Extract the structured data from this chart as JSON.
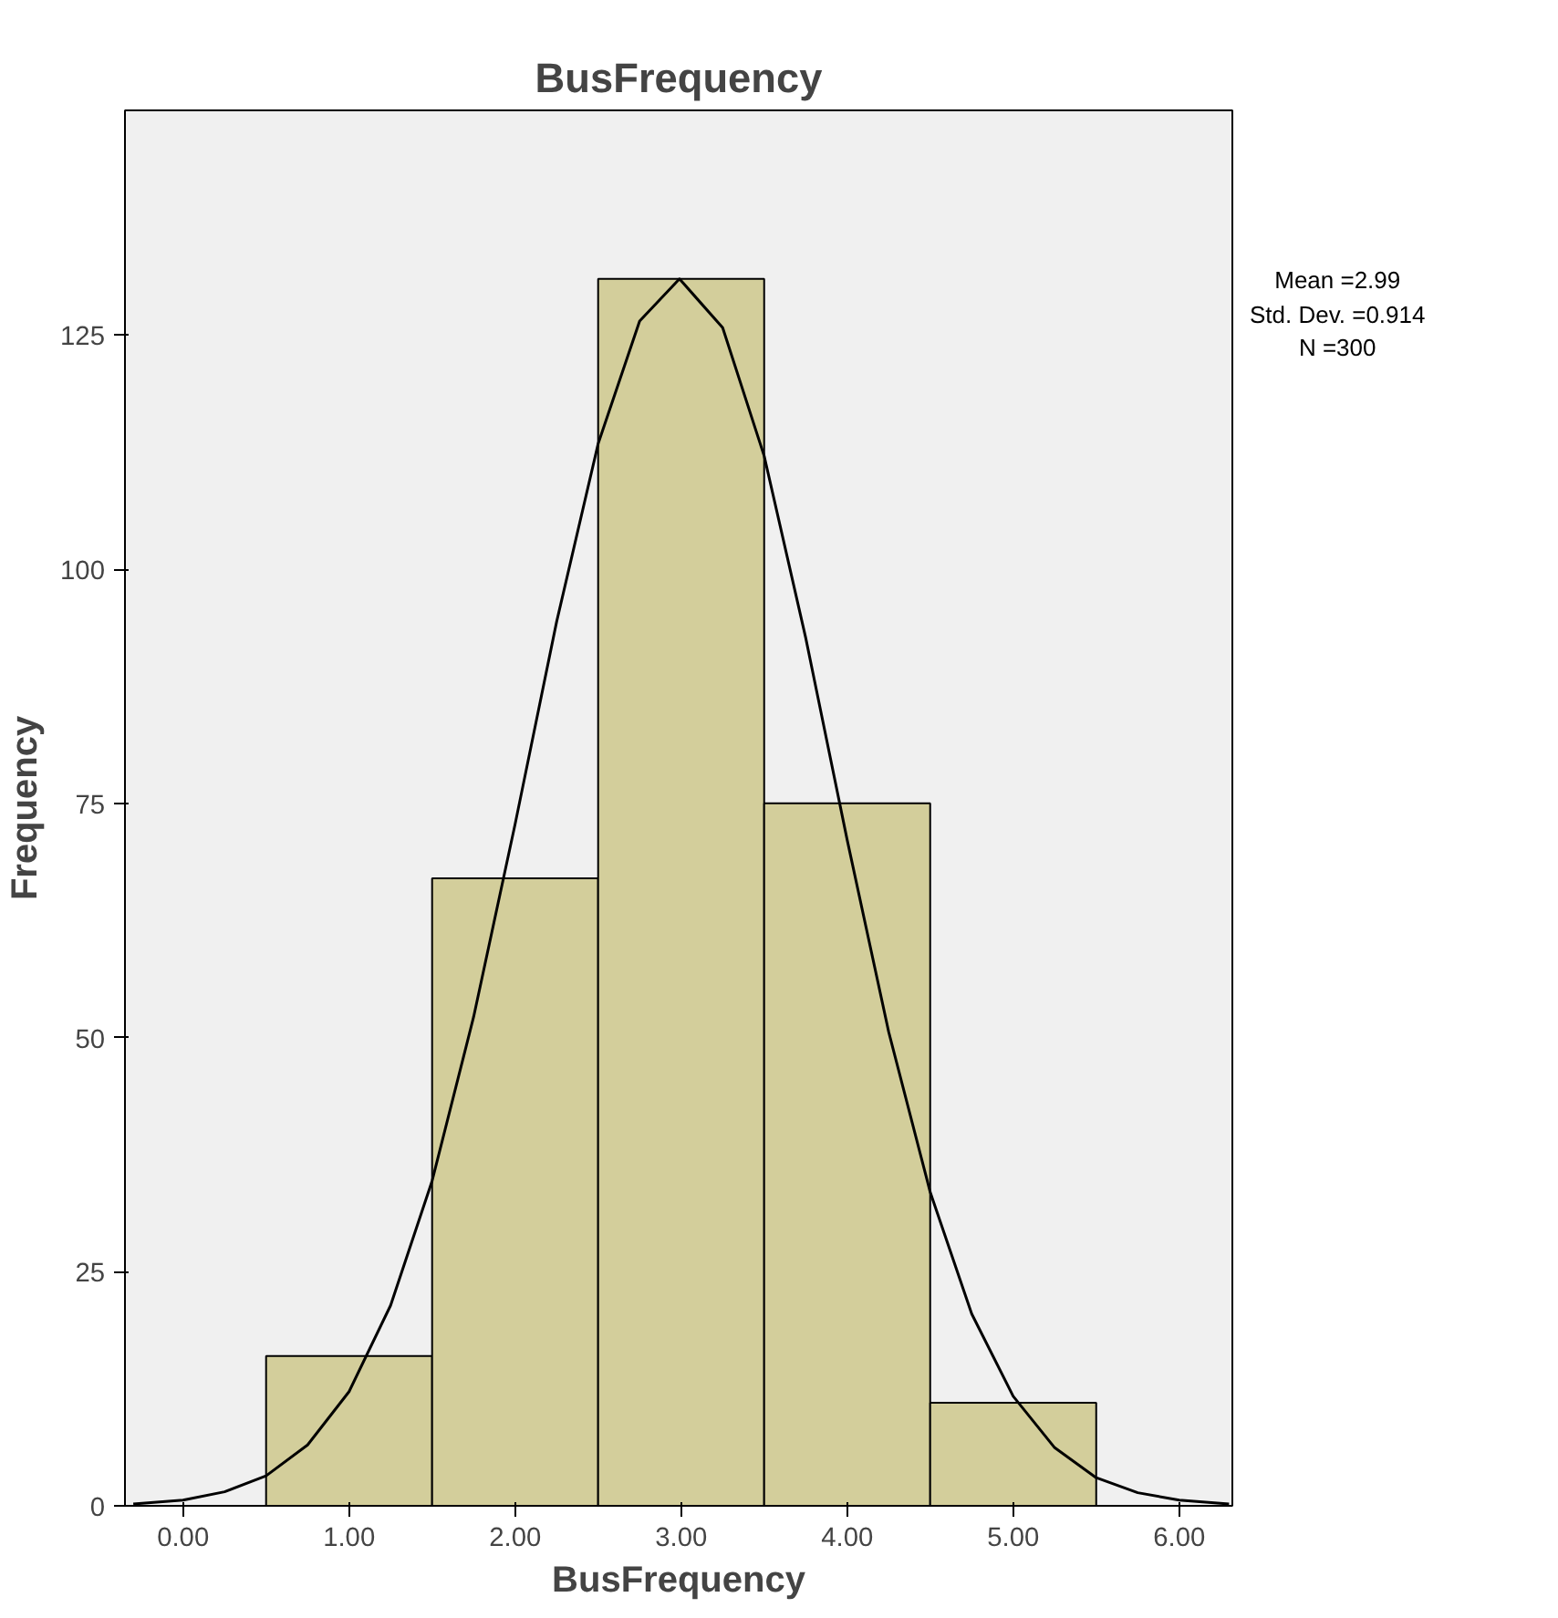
{
  "chart_data": {
    "type": "histogram",
    "title": "BusFrequency",
    "xlabel": "BusFrequency",
    "ylabel": "Frequency",
    "bins": [
      0.5,
      1.5,
      2.5,
      3.5,
      4.5,
      5.5
    ],
    "values": [
      16,
      67,
      131,
      75,
      11
    ],
    "color": "#d3ce9b",
    "series": [
      {
        "type": "line",
        "color": "#000000",
        "x": [
          -0.3,
          0,
          0.25,
          0.5,
          0.75,
          1,
          1.25,
          1.5,
          1.75,
          2,
          2.25,
          2.5,
          2.75,
          2.99,
          3.25,
          3.5,
          3.75,
          4,
          4.25,
          4.5,
          4.75,
          5,
          5.25,
          5.5,
          5.75,
          6,
          6.3
        ],
        "values": [
          0.2,
          0.6,
          1.5,
          3.2,
          6.5,
          12.2,
          21.4,
          34.7,
          52.2,
          72.8,
          94.4,
          113.4,
          126.5,
          131,
          125.8,
          112.1,
          92.7,
          71.1,
          50.6,
          33.5,
          20.5,
          11.7,
          6.2,
          3,
          1.4,
          0.6,
          0.2
        ]
      }
    ],
    "xlim": [
      -0.35,
      6.32
    ],
    "ylim": [
      0,
      149
    ],
    "xticks": [
      {
        "value": 0,
        "label": "0.00"
      },
      {
        "value": 1,
        "label": "1.00"
      },
      {
        "value": 2,
        "label": "2.00"
      },
      {
        "value": 3,
        "label": "3.00"
      },
      {
        "value": 4,
        "label": "4.00"
      },
      {
        "value": 5,
        "label": "5.00"
      },
      {
        "value": 6,
        "label": "6.00"
      }
    ],
    "yticks": [
      0,
      25,
      50,
      75,
      100,
      125
    ],
    "grid": false,
    "annotations": [
      "Mean =2.99",
      "Std. Dev. =0.914",
      "N =300"
    ]
  }
}
